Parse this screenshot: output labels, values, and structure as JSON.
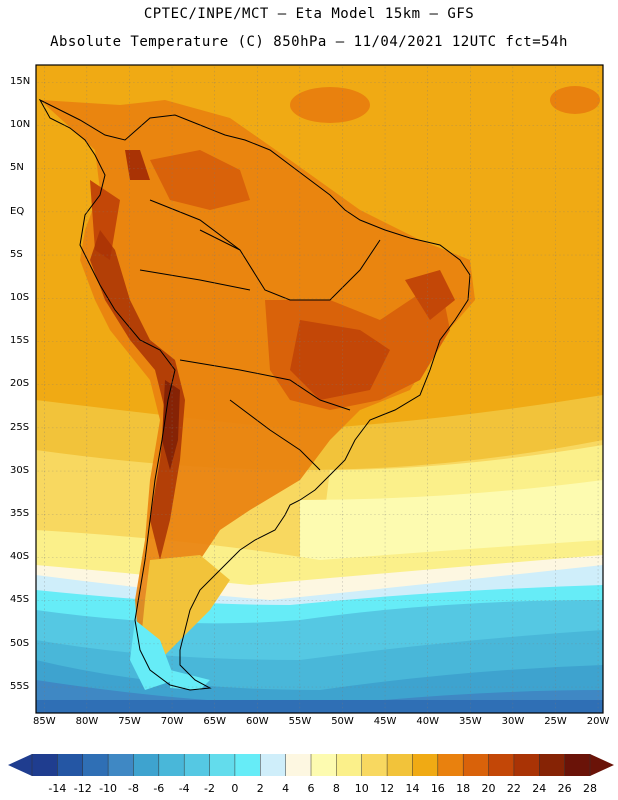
{
  "header": {
    "line1": "CPTEC/INPE/MCT –  Eta Model 15km – GFS",
    "line2": "Absolute Temperature (C) 850hPa – 11/04/2021 12UTC fct=54h"
  },
  "lat_labels": [
    "15N",
    "10N",
    "5N",
    "EQ",
    "5S",
    "10S",
    "15S",
    "20S",
    "25S",
    "30S",
    "35S",
    "40S",
    "45S",
    "50S",
    "55S"
  ],
  "lon_labels": [
    "85W",
    "80W",
    "75W",
    "70W",
    "65W",
    "60W",
    "55W",
    "50W",
    "45W",
    "40W",
    "35W",
    "30W",
    "25W",
    "20W"
  ],
  "colorbar": {
    "labels": [
      "-14",
      "-12",
      "-10",
      "-8",
      "-6",
      "-4",
      "-2",
      "0",
      "2",
      "4",
      "6",
      "8",
      "10",
      "12",
      "14",
      "16",
      "18",
      "20",
      "22",
      "24",
      "26",
      "28"
    ],
    "colors": [
      "#1f3d8f",
      "#2456a4",
      "#2f6fb5",
      "#3f88c4",
      "#3ea3cf",
      "#49b7d9",
      "#55c8e3",
      "#63dcec",
      "#66ecf7",
      "#cfeefa",
      "#fdf7e1",
      "#fdfbb0",
      "#fbf08a",
      "#f8d860",
      "#f2c33a",
      "#f0aa14",
      "#e9810e",
      "#d9620a",
      "#c34707",
      "#a93305",
      "#862305",
      "#6a1308"
    ]
  }
}
